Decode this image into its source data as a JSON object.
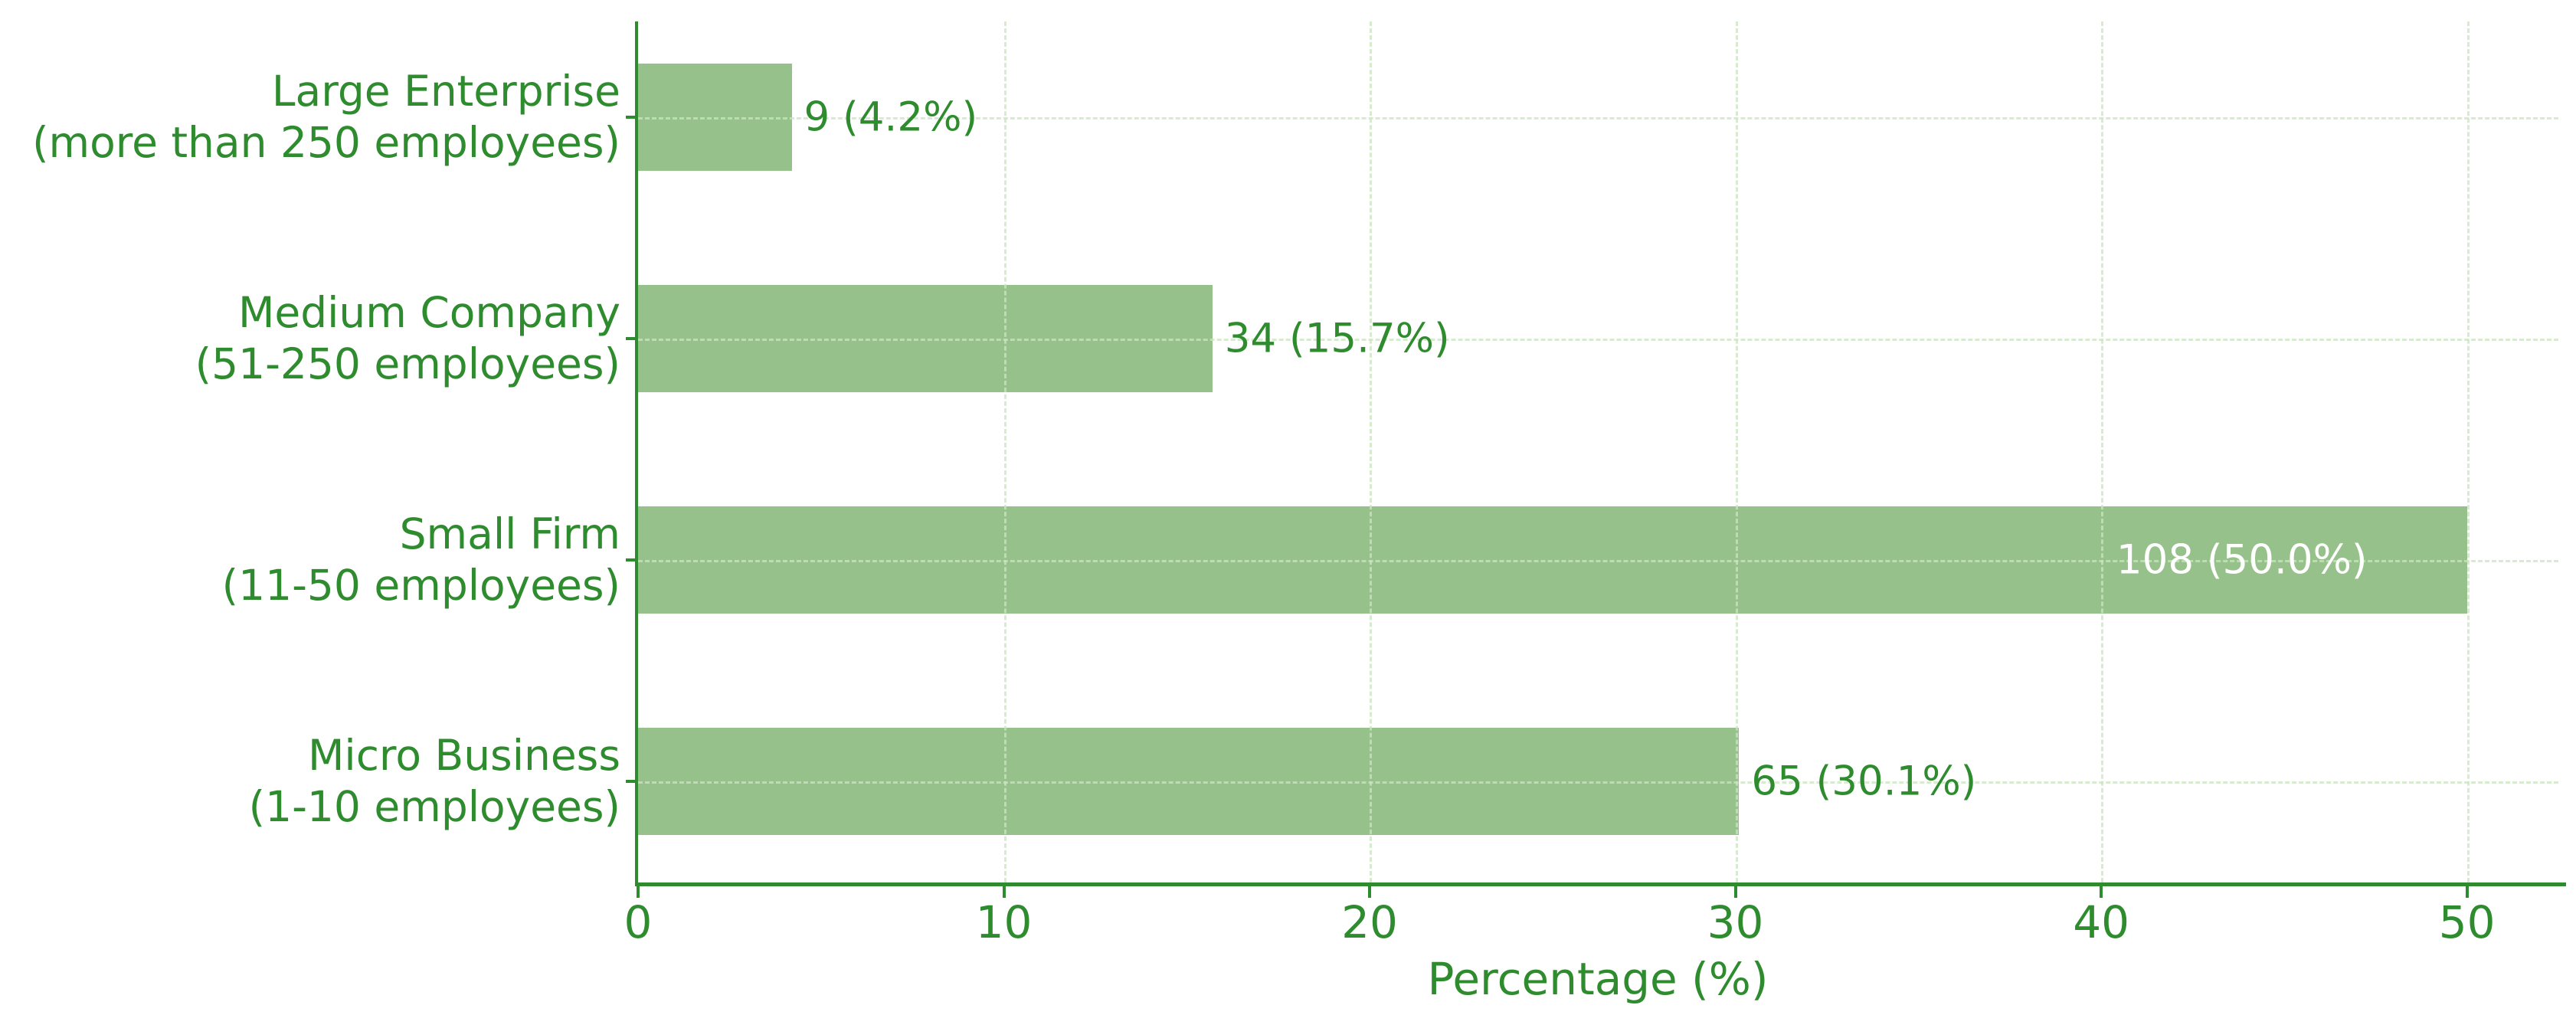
{
  "chart_data": {
    "type": "bar",
    "orientation": "horizontal",
    "title": "",
    "xlabel": "Percentage (%)",
    "ylabel": "",
    "xlim": [
      0,
      52.5
    ],
    "xticks": [
      0,
      10,
      20,
      30,
      40,
      50
    ],
    "grid": true,
    "legend": false,
    "categories": [
      "Large Enterprise (more than 250 employees)",
      "Medium Company (51-250 employees)",
      "Small Firm (11-50 employees)",
      "Micro Business (1-10 employees)"
    ],
    "rows": [
      {
        "name": "Large Enterprise",
        "qualifier": "(more than 250 employees)",
        "count": 9,
        "percent": 4.2,
        "bar_label": "9 (4.2%)",
        "label_inside": false
      },
      {
        "name": "Medium Company",
        "qualifier": "(51-250 employees)",
        "count": 34,
        "percent": 15.7,
        "bar_label": "34 (15.7%)",
        "label_inside": false
      },
      {
        "name": "Small Firm",
        "qualifier": "(11-50 employees)",
        "count": 108,
        "percent": 50.0,
        "bar_label": "108 (50.0%)",
        "label_inside": true
      },
      {
        "name": "Micro Business",
        "qualifier": "(1-10 employees)",
        "count": 65,
        "percent": 30.1,
        "bar_label": "65 (30.1%)",
        "label_inside": false
      }
    ],
    "colors": {
      "bar_fill": "#97c18a",
      "axis_green": "#2e8b2e",
      "grid_green": "#cbe4c1",
      "inside_label": "#ffffff",
      "background": "#ffffff"
    }
  }
}
